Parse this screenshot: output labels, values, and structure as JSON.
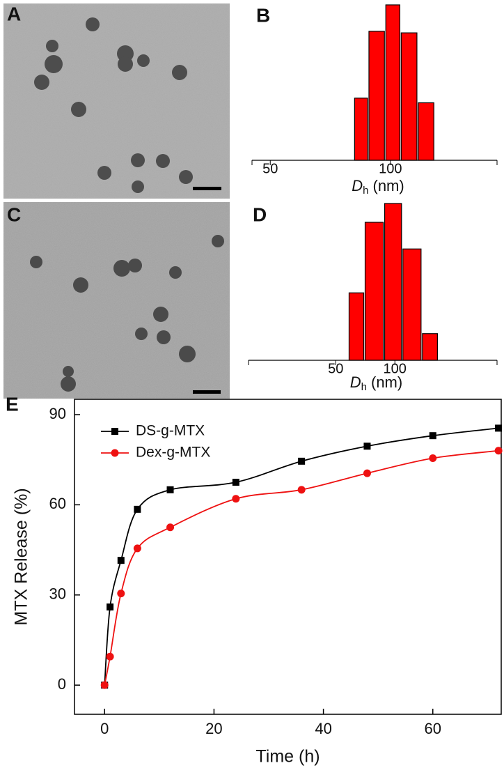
{
  "images": [
    {
      "label": "A"
    },
    {
      "label": "C"
    }
  ],
  "chart_data": [
    {
      "type": "histogram",
      "panel": "B",
      "bins": [
        81,
        88,
        97,
        106,
        117,
        129
      ],
      "values": [
        40,
        83,
        100,
        82,
        37
      ],
      "color": "#ff0000",
      "log_x": true,
      "xlim": [
        45,
        185
      ],
      "xticks": [
        50,
        100
      ],
      "x_label": "D",
      "x_label_sub": "h",
      "x_label_unit": "(nm)"
    },
    {
      "type": "histogram",
      "panel": "D",
      "bins": [
        58,
        70,
        88,
        109,
        137,
        166
      ],
      "values": [
        43,
        88,
        100,
        71,
        17
      ],
      "color": "#ff0000",
      "log_x": true,
      "xlim": [
        18,
        331
      ],
      "xticks": [
        50,
        100
      ],
      "x_label": "D",
      "x_label_sub": "h",
      "x_label_unit": "(nm)"
    },
    {
      "type": "line",
      "panel": "E",
      "x_label": "Time (h)",
      "y_label": "MTX Release (%)",
      "x": [
        0,
        1,
        3,
        6,
        12,
        24,
        36,
        48,
        60,
        72
      ],
      "series": [
        {
          "name": "DS-g-MTX",
          "color": "#000000",
          "marker": "square",
          "values": [
            0,
            26,
            41.5,
            58.5,
            65,
            67.5,
            74.5,
            79.5,
            83,
            85.5
          ]
        },
        {
          "name": "Dex-g-MTX",
          "color": "#ee1111",
          "marker": "circle",
          "values": [
            0,
            9.5,
            30.5,
            45.5,
            52.5,
            62,
            65,
            70.5,
            75.5,
            78
          ]
        }
      ],
      "xlim": [
        -5.5,
        72.5
      ],
      "ylim": [
        -9.7,
        95.1
      ],
      "xticks": [
        0,
        20,
        40,
        60
      ],
      "yticks": [
        0,
        30,
        60,
        90
      ]
    }
  ]
}
